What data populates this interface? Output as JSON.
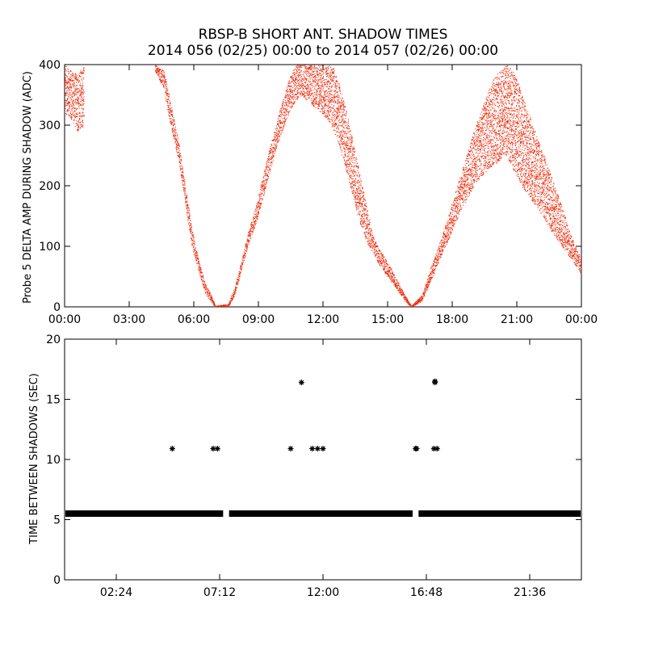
{
  "figure": {
    "title_line1": "RBSP-B SHORT ANT. SHADOW TIMES",
    "title_line2": "2014 056 (02/25) 00:00 to 2014 057 (02/26) 00:00"
  },
  "colors": {
    "amp_points": "#ee2200",
    "interval_points": "#000000",
    "axes": "#000000"
  },
  "chart_data": [
    {
      "type": "scatter",
      "ylabel": "Probe 5 DELTA AMP DURING SHADOW (ADC)",
      "xlabel": "",
      "xlim": [
        0,
        24
      ],
      "ylim": [
        0,
        400
      ],
      "x_ticks": [
        "00:00",
        "03:00",
        "06:00",
        "09:00",
        "12:00",
        "15:00",
        "18:00",
        "21:00",
        "00:00"
      ],
      "x_tick_values": [
        0,
        3,
        6,
        9,
        12,
        15,
        18,
        21,
        24
      ],
      "y_ticks": [
        "0",
        "100",
        "200",
        "300",
        "400"
      ],
      "y_tick_values": [
        0,
        100,
        200,
        300,
        400
      ],
      "marker": "dot",
      "series": [
        {
          "x_hours": [
            0.0,
            0.3,
            0.6,
            0.9,
            4.2,
            4.6,
            4.9,
            5.3,
            5.6,
            5.9,
            6.2,
            6.5,
            6.8,
            7.0,
            7.6,
            7.9,
            8.2,
            8.5,
            8.9,
            9.2,
            9.5,
            9.8,
            10.1,
            10.4,
            10.7,
            11.0,
            11.3,
            11.6,
            11.9,
            12.2,
            12.5,
            12.8,
            13.1,
            13.4,
            13.7,
            14.0,
            14.3,
            14.6,
            14.9,
            15.2,
            15.5,
            15.8,
            16.1,
            16.6,
            16.9,
            17.2,
            17.5,
            17.8,
            18.1,
            18.4,
            18.7,
            19.0,
            19.3,
            19.6,
            19.9,
            20.2,
            20.5,
            20.7,
            21.0,
            21.3,
            21.6,
            21.9,
            22.2,
            22.5,
            22.8,
            23.1,
            23.4,
            23.7,
            24.0
          ],
          "y_upper": [
            400,
            390,
            385,
            400,
            400,
            390,
            340,
            270,
            200,
            130,
            80,
            40,
            20,
            2,
            5,
            35,
            75,
            120,
            170,
            215,
            260,
            300,
            340,
            375,
            400,
            400,
            400,
            400,
            400,
            400,
            395,
            360,
            320,
            270,
            220,
            170,
            120,
            95,
            80,
            60,
            40,
            20,
            2,
            20,
            55,
            85,
            115,
            150,
            185,
            220,
            255,
            290,
            320,
            350,
            375,
            390,
            400,
            395,
            375,
            345,
            315,
            285,
            255,
            225,
            195,
            165,
            130,
            100,
            80
          ],
          "y_lower": [
            320,
            310,
            290,
            300,
            390,
            360,
            300,
            240,
            170,
            100,
            60,
            25,
            8,
            0,
            0,
            20,
            60,
            100,
            140,
            180,
            220,
            260,
            290,
            320,
            340,
            350,
            340,
            330,
            320,
            310,
            290,
            260,
            220,
            180,
            140,
            110,
            90,
            70,
            55,
            40,
            25,
            10,
            0,
            10,
            35,
            60,
            85,
            110,
            135,
            160,
            180,
            200,
            215,
            225,
            235,
            240,
            250,
            235,
            215,
            195,
            180,
            165,
            150,
            130,
            115,
            100,
            85,
            70,
            55
          ]
        }
      ]
    },
    {
      "type": "scatter",
      "ylabel": "TIME BETWEEN SHADOWS (SEC)",
      "xlabel": "",
      "xlim": [
        0,
        24
      ],
      "ylim": [
        0,
        20
      ],
      "x_ticks": [
        "02:24",
        "07:12",
        "12:00",
        "16:48",
        "21:36"
      ],
      "x_tick_values": [
        2.4,
        7.2,
        12.0,
        16.8,
        21.6
      ],
      "y_ticks": [
        "0",
        "5",
        "10",
        "15",
        "20"
      ],
      "y_tick_values": [
        0,
        5,
        10,
        15,
        20
      ],
      "marker": "asterisk",
      "baseline": {
        "value": 5.5,
        "gaps_hours": [
          [
            7.4,
            7.6
          ],
          [
            16.2,
            16.4
          ]
        ]
      },
      "outliers": [
        {
          "x": 5.0,
          "y": 10.9
        },
        {
          "x": 6.9,
          "y": 10.9
        },
        {
          "x": 7.1,
          "y": 10.9
        },
        {
          "x": 10.5,
          "y": 10.9
        },
        {
          "x": 11.0,
          "y": 16.4
        },
        {
          "x": 11.5,
          "y": 10.9
        },
        {
          "x": 11.75,
          "y": 10.9
        },
        {
          "x": 12.0,
          "y": 10.9
        },
        {
          "x": 16.3,
          "y": 10.9
        },
        {
          "x": 16.35,
          "y": 10.9
        },
        {
          "x": 17.15,
          "y": 10.9
        },
        {
          "x": 17.2,
          "y": 16.4
        },
        {
          "x": 17.2,
          "y": 16.5
        },
        {
          "x": 17.3,
          "y": 10.9
        }
      ]
    }
  ]
}
